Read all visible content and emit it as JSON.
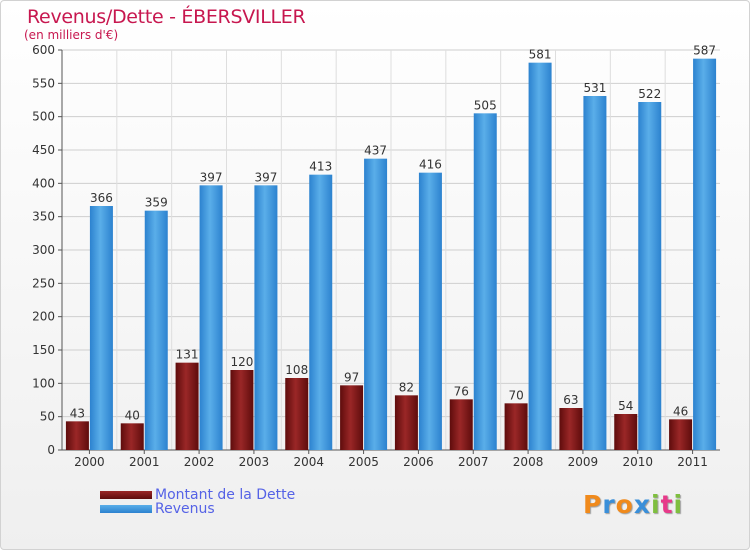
{
  "title": "Revenus/Dette - ÉBERSVILLER",
  "unit": "(en milliers d'€)",
  "logo": [
    "P",
    "r",
    "o",
    "x",
    "i",
    "t",
    "i"
  ],
  "logo_colors": [
    "#f08a1c",
    "#3a8fd9",
    "#f08a1c",
    "#3a8fd9",
    "#7fbf3f",
    "#e73a8a",
    "#7fbf3f"
  ],
  "legend": [
    "Montant de la Dette",
    "Revenus"
  ],
  "chart_data": {
    "type": "bar",
    "title": "Revenus/Dette - ÉBERSVILLER",
    "xlabel": "",
    "ylabel": "(en milliers d'€)",
    "ylim": [
      0,
      600
    ],
    "yticks": [
      0,
      50,
      100,
      150,
      200,
      250,
      300,
      350,
      400,
      450,
      500,
      550,
      600
    ],
    "grid": true,
    "legend_position": "bottom-left",
    "categories": [
      "2000",
      "2001",
      "2002",
      "2003",
      "2004",
      "2005",
      "2006",
      "2007",
      "2008",
      "2009",
      "2010",
      "2011"
    ],
    "series": [
      {
        "name": "Montant de la Dette",
        "color": "#8b1c1c",
        "values": [
          43,
          40,
          131,
          120,
          108,
          97,
          82,
          76,
          70,
          63,
          54,
          46
        ]
      },
      {
        "name": "Revenus",
        "color": "#3a93dd",
        "values": [
          366,
          359,
          397,
          397,
          413,
          437,
          416,
          505,
          581,
          531,
          522,
          587
        ]
      }
    ]
  }
}
